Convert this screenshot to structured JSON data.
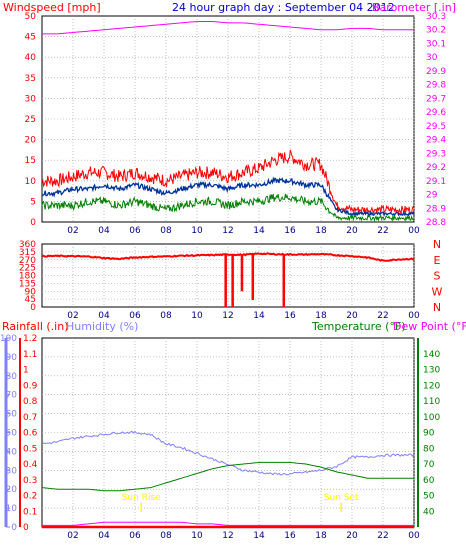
{
  "header": {
    "left": "Windspeed [mph]",
    "center": "24 hour graph day : September 04 2012",
    "right": "Barometer [.in]"
  },
  "bottom_header": {
    "rainfall": "Rainfall (.in)",
    "humidity": "Humidity (%)",
    "temperature": "Temperature (°F)",
    "dewpoint": "Dew Point (°F)"
  },
  "events": {
    "sunrise": "Sun Rise",
    "sunset": "Sun Set"
  },
  "colors": {
    "wind_gust": "#ff0000",
    "wind_avg": "#003399",
    "wind_low": "#008000",
    "barometer": "#ff00ff",
    "direction": "#ff0000",
    "rainfall": "#ff0000",
    "humidity": "#8080ff",
    "temperature": "#008000",
    "dewpoint": "#ff00ff",
    "grid": "#9a9a9a",
    "event": "#ffff00"
  },
  "chart_data": [
    {
      "type": "line",
      "panel": "wind-barometer",
      "x_ticks": [
        "02",
        "04",
        "06",
        "08",
        "10",
        "12",
        "14",
        "16",
        "18",
        "20",
        "22",
        "00"
      ],
      "left_axis": {
        "label": "Windspeed [mph]",
        "ylim": [
          0,
          50
        ],
        "ticks": [
          "0",
          "5",
          "10",
          "15",
          "20",
          "25",
          "30",
          "35",
          "40",
          "45",
          "50"
        ]
      },
      "right_axis": {
        "label": "Barometer [.in]",
        "ylim": [
          28.8,
          30.3
        ],
        "ticks": [
          "28.8",
          "28.9",
          "29",
          "29.1",
          "29.2",
          "29.3",
          "29.4",
          "29.5",
          "29.6",
          "29.7",
          "29.8",
          "29.9",
          "30",
          "30.1",
          "30.2",
          "30.3"
        ]
      },
      "x": [
        0,
        1,
        2,
        3,
        4,
        5,
        6,
        7,
        8,
        9,
        10,
        11,
        12,
        13,
        14,
        15,
        16,
        17,
        18,
        19,
        20,
        21,
        22,
        23,
        24
      ],
      "series": [
        {
          "key": "wind_gust",
          "axis": "left",
          "values": [
            10,
            10,
            11,
            12,
            12,
            11,
            12,
            11,
            10,
            11,
            12,
            12,
            11,
            12,
            13,
            15,
            16,
            14,
            14,
            4,
            3,
            3,
            3,
            3,
            3
          ]
        },
        {
          "key": "wind_avg",
          "axis": "left",
          "values": [
            7,
            7,
            8,
            8,
            9,
            8,
            9,
            8,
            7,
            8,
            9,
            9,
            8,
            9,
            9,
            10,
            10,
            9,
            9,
            3,
            2,
            2,
            2,
            2,
            2
          ]
        },
        {
          "key": "wind_low",
          "axis": "left",
          "values": [
            4,
            4,
            4,
            5,
            5,
            4,
            5,
            4,
            3,
            4,
            5,
            5,
            4,
            5,
            5,
            6,
            6,
            5,
            5,
            1,
            1,
            1,
            1,
            1,
            1
          ]
        },
        {
          "key": "barometer",
          "axis": "right",
          "values": [
            30.17,
            30.17,
            30.18,
            30.19,
            30.2,
            30.21,
            30.22,
            30.23,
            30.24,
            30.25,
            30.26,
            30.26,
            30.25,
            30.25,
            30.24,
            30.23,
            30.22,
            30.21,
            30.2,
            30.2,
            30.21,
            30.21,
            30.2,
            30.2,
            30.2
          ]
        }
      ]
    },
    {
      "type": "line",
      "panel": "wind-direction",
      "x_ticks": [
        "02",
        "04",
        "06",
        "08",
        "10",
        "12",
        "14",
        "16",
        "18",
        "20",
        "22",
        "00"
      ],
      "left_axis": {
        "ylim": [
          0,
          360
        ],
        "ticks": [
          "0",
          "45",
          "90",
          "135",
          "180",
          "225",
          "270",
          "315",
          "360"
        ]
      },
      "right_axis": {
        "ticks": [
          "N",
          "W",
          "S",
          "E",
          "N"
        ]
      },
      "x": [
        0,
        1,
        2,
        3,
        4,
        5,
        6,
        7,
        8,
        9,
        10,
        11,
        12,
        13,
        14,
        15,
        16,
        17,
        18,
        19,
        20,
        21,
        22,
        23,
        24
      ],
      "series": [
        {
          "key": "direction",
          "values": [
            290,
            292,
            290,
            288,
            280,
            275,
            283,
            287,
            289,
            293,
            295,
            297,
            300,
            298,
            305,
            302,
            300,
            300,
            302,
            296,
            291,
            283,
            264,
            272,
            275
          ]
        }
      ],
      "dips": [
        {
          "x": 11.85,
          "to": 0
        },
        {
          "x": 12.3,
          "to": 0
        },
        {
          "x": 12.9,
          "to": 90
        },
        {
          "x": 13.6,
          "to": 40
        },
        {
          "x": 15.6,
          "to": 0
        }
      ]
    },
    {
      "type": "line",
      "panel": "rain-humidity-temperature",
      "x_ticks": [
        "02",
        "04",
        "06",
        "08",
        "10",
        "12",
        "14",
        "16",
        "18",
        "20",
        "22",
        "00"
      ],
      "humidity_axis": {
        "ylim": [
          0,
          100
        ],
        "ticks": [
          "0",
          "10",
          "20",
          "30",
          "40",
          "50",
          "60",
          "70",
          "80",
          "90",
          "100"
        ]
      },
      "rain_axis": {
        "ylim": [
          0,
          1.2
        ],
        "ticks": [
          "0",
          "0.1",
          "0.2",
          "0.3",
          "0.4",
          "0.5",
          "0.6",
          "0.7",
          "0.8",
          "0.9",
          "1",
          "1.1",
          "1.2"
        ]
      },
      "temp_axis": {
        "ylim": [
          30,
          150
        ],
        "ticks": [
          "40",
          "50",
          "60",
          "70",
          "80",
          "90",
          "100",
          "110",
          "120",
          "130",
          "140"
        ]
      },
      "x": [
        0,
        1,
        2,
        3,
        4,
        5,
        6,
        7,
        8,
        9,
        10,
        11,
        12,
        13,
        14,
        15,
        16,
        17,
        18,
        19,
        20,
        21,
        22,
        23,
        24
      ],
      "series": [
        {
          "key": "humidity",
          "axis": "humidity",
          "values": [
            44,
            45,
            47,
            48,
            49,
            50,
            50,
            49,
            44,
            42,
            39,
            36,
            33,
            30,
            29,
            28,
            28,
            29,
            30,
            32,
            37,
            37,
            38,
            38,
            38
          ]
        },
        {
          "key": "temperature",
          "axis": "temp",
          "values": [
            55,
            54,
            54,
            54,
            53,
            53,
            54,
            55,
            58,
            61,
            64,
            67,
            69,
            70,
            71,
            71,
            71,
            70,
            68,
            65,
            63,
            61,
            61,
            61,
            61
          ]
        },
        {
          "key": "dewpoint",
          "axis": "temp",
          "values": [
            31,
            31,
            31,
            32,
            33,
            33,
            33,
            33,
            33,
            33,
            32,
            32,
            31,
            31,
            31,
            31,
            31,
            31,
            31,
            31,
            31,
            31,
            31,
            31,
            31
          ]
        },
        {
          "key": "rainfall",
          "axis": "rain",
          "values": [
            0,
            0,
            0,
            0,
            0,
            0,
            0,
            0,
            0,
            0,
            0,
            0,
            0,
            0,
            0,
            0,
            0,
            0,
            0,
            0,
            0,
            0,
            0,
            0,
            0
          ]
        }
      ],
      "event_x": {
        "sunrise": 6.4,
        "sunset": 19.3
      }
    }
  ]
}
